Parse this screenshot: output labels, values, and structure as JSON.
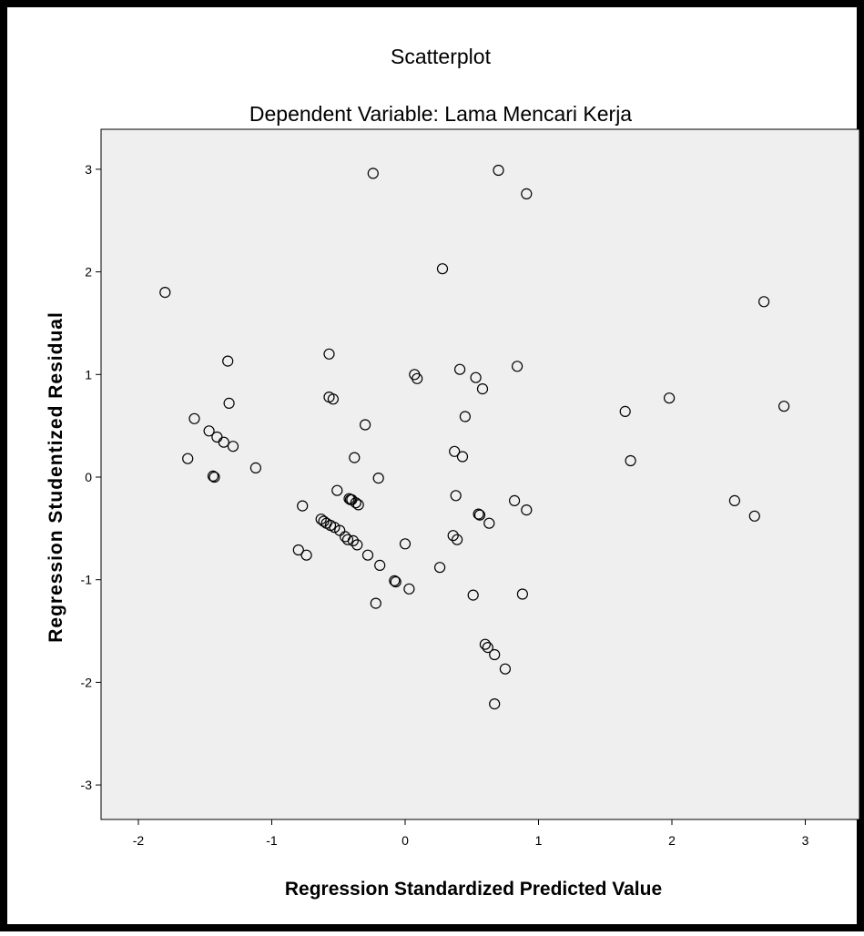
{
  "chart_data": {
    "type": "scatter",
    "title": "Scatterplot",
    "subtitle": "Dependent Variable: Lama Mencari Kerja",
    "xlabel": "Regression Standardized Predicted Value",
    "ylabel": "Regression Studentized Residual",
    "xlim": [
      -2.3,
      3.2
    ],
    "ylim": [
      -3.35,
      3.35
    ],
    "x_ticks": [
      -2,
      -1,
      0,
      1,
      2,
      3
    ],
    "y_ticks": [
      -3,
      -2,
      -1,
      0,
      1,
      2,
      3
    ],
    "x_tick_labels": [
      "-2",
      "-1",
      "0",
      "1",
      "2",
      "3"
    ],
    "y_tick_labels": [
      "-3",
      "-2",
      "-1",
      "0",
      "1",
      "2",
      "3"
    ],
    "grid": false,
    "legend": "none",
    "plot_background": "#efefef",
    "marker": "open-circle",
    "points": [
      {
        "x": -1.8,
        "y": 1.8
      },
      {
        "x": -1.63,
        "y": 0.18
      },
      {
        "x": -1.58,
        "y": 0.57
      },
      {
        "x": -1.47,
        "y": 0.45
      },
      {
        "x": -1.44,
        "y": 0.01
      },
      {
        "x": -1.43,
        "y": 0.0
      },
      {
        "x": -1.41,
        "y": 0.39
      },
      {
        "x": -1.36,
        "y": 0.34
      },
      {
        "x": -1.33,
        "y": 1.13
      },
      {
        "x": -1.32,
        "y": 0.72
      },
      {
        "x": -1.29,
        "y": 0.3
      },
      {
        "x": -1.12,
        "y": 0.09
      },
      {
        "x": -0.8,
        "y": -0.71
      },
      {
        "x": -0.77,
        "y": -0.28
      },
      {
        "x": -0.74,
        "y": -0.76
      },
      {
        "x": -0.63,
        "y": -0.41
      },
      {
        "x": -0.61,
        "y": -0.43
      },
      {
        "x": -0.59,
        "y": -0.45
      },
      {
        "x": -0.57,
        "y": 1.2
      },
      {
        "x": -0.57,
        "y": 0.78
      },
      {
        "x": -0.56,
        "y": -0.47
      },
      {
        "x": -0.54,
        "y": 0.76
      },
      {
        "x": -0.53,
        "y": -0.49
      },
      {
        "x": -0.51,
        "y": -0.13
      },
      {
        "x": -0.49,
        "y": -0.52
      },
      {
        "x": -0.45,
        "y": -0.58
      },
      {
        "x": -0.43,
        "y": -0.61
      },
      {
        "x": -0.42,
        "y": -0.21
      },
      {
        "x": -0.41,
        "y": -0.22
      },
      {
        "x": -0.4,
        "y": -0.22
      },
      {
        "x": -0.39,
        "y": -0.62
      },
      {
        "x": -0.38,
        "y": 0.19
      },
      {
        "x": -0.37,
        "y": -0.25
      },
      {
        "x": -0.36,
        "y": -0.66
      },
      {
        "x": -0.35,
        "y": -0.27
      },
      {
        "x": -0.3,
        "y": 0.51
      },
      {
        "x": -0.28,
        "y": -0.76
      },
      {
        "x": -0.24,
        "y": 2.96
      },
      {
        "x": -0.22,
        "y": -1.23
      },
      {
        "x": -0.2,
        "y": -0.01
      },
      {
        "x": -0.19,
        "y": -0.86
      },
      {
        "x": -0.08,
        "y": -1.01
      },
      {
        "x": -0.07,
        "y": -1.02
      },
      {
        "x": 0.0,
        "y": -0.65
      },
      {
        "x": 0.03,
        "y": -1.09
      },
      {
        "x": 0.07,
        "y": 1.0
      },
      {
        "x": 0.09,
        "y": 0.96
      },
      {
        "x": 0.26,
        "y": -0.88
      },
      {
        "x": 0.28,
        "y": 2.03
      },
      {
        "x": 0.36,
        "y": -0.57
      },
      {
        "x": 0.37,
        "y": 0.25
      },
      {
        "x": 0.38,
        "y": -0.18
      },
      {
        "x": 0.39,
        "y": -0.61
      },
      {
        "x": 0.41,
        "y": 1.05
      },
      {
        "x": 0.43,
        "y": 0.2
      },
      {
        "x": 0.45,
        "y": 0.59
      },
      {
        "x": 0.51,
        "y": -1.15
      },
      {
        "x": 0.53,
        "y": 0.97
      },
      {
        "x": 0.55,
        "y": -0.36
      },
      {
        "x": 0.56,
        "y": -0.37
      },
      {
        "x": 0.58,
        "y": 0.86
      },
      {
        "x": 0.6,
        "y": -1.63
      },
      {
        "x": 0.62,
        "y": -1.66
      },
      {
        "x": 0.63,
        "y": -0.45
      },
      {
        "x": 0.67,
        "y": -1.73
      },
      {
        "x": 0.67,
        "y": -2.21
      },
      {
        "x": 0.7,
        "y": 2.99
      },
      {
        "x": 0.75,
        "y": -1.87
      },
      {
        "x": 0.82,
        "y": -0.23
      },
      {
        "x": 0.84,
        "y": 1.08
      },
      {
        "x": 0.88,
        "y": -1.14
      },
      {
        "x": 0.91,
        "y": 2.76
      },
      {
        "x": 0.91,
        "y": -0.32
      },
      {
        "x": 1.65,
        "y": 0.64
      },
      {
        "x": 1.69,
        "y": 0.16
      },
      {
        "x": 1.98,
        "y": 0.77
      },
      {
        "x": 2.47,
        "y": -0.23
      },
      {
        "x": 2.62,
        "y": -0.38
      },
      {
        "x": 2.69,
        "y": 1.71
      },
      {
        "x": 2.84,
        "y": 0.69
      }
    ]
  }
}
